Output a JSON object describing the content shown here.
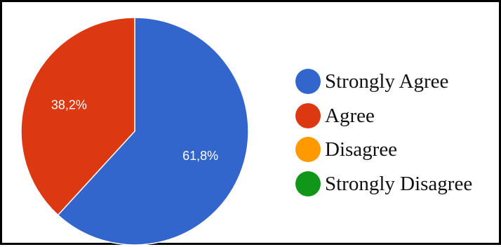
{
  "chart_data": {
    "type": "pie",
    "title": "",
    "categories": [
      "Strongly Agree",
      "Agree",
      "Disagree",
      "Strongly Disagree"
    ],
    "values": [
      61.8,
      38.2,
      0,
      0
    ],
    "value_labels": [
      "61,8%",
      "38,2%",
      "",
      ""
    ],
    "colors": [
      "#3366cc",
      "#dc3912",
      "#ff9900",
      "#109618"
    ],
    "start_angle_deg": 90,
    "direction": "clockwise",
    "legend_position": "right"
  }
}
